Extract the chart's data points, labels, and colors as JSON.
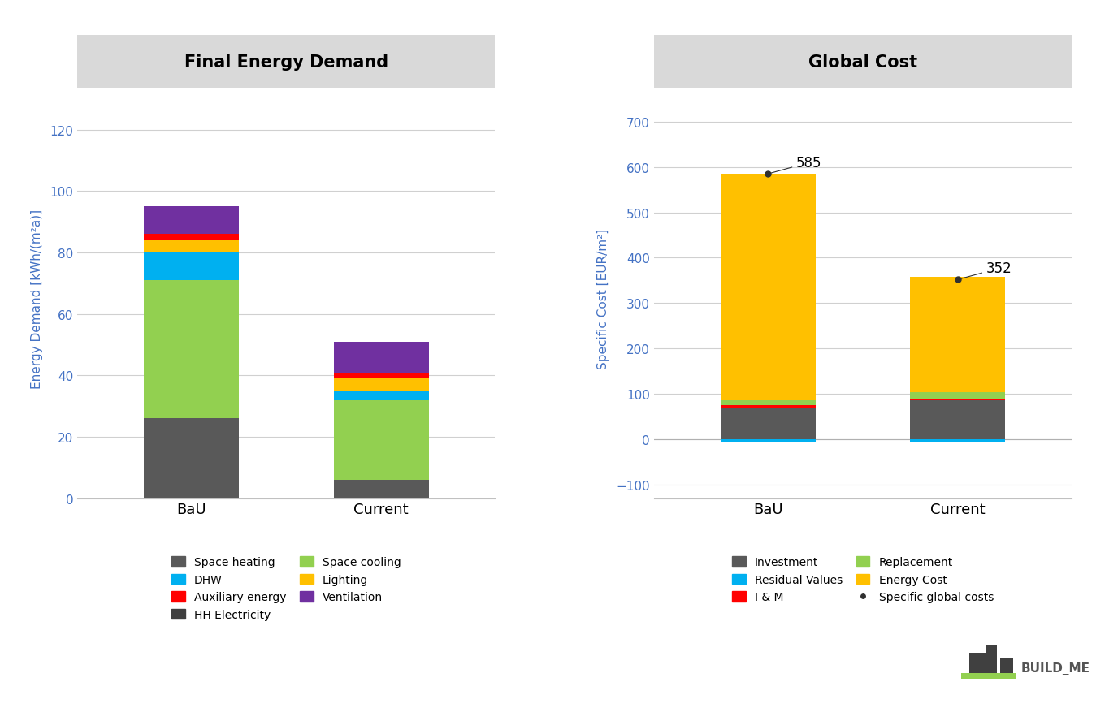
{
  "left_title": "Final Energy Demand",
  "right_title": "Global Cost",
  "left_ylabel": "Energy Demand [kWh/(m²a)]",
  "right_ylabel": "Specific Cost [EUR/m²]",
  "categories": [
    "BaU",
    "Current"
  ],
  "energy_data": {
    "Space heating": [
      26.0,
      6.0
    ],
    "Space cooling": [
      45.0,
      26.0
    ],
    "DHW": [
      9.0,
      3.0
    ],
    "Lighting": [
      4.0,
      4.0
    ],
    "Auxiliary energy": [
      2.0,
      2.0
    ],
    "Ventilation": [
      9.0,
      10.0
    ],
    "HH Electricity": [
      0.0,
      0.0
    ]
  },
  "energy_colors": {
    "Space heating": "#595959",
    "Space cooling": "#92d050",
    "DHW": "#00b0f0",
    "Lighting": "#ffc000",
    "Auxiliary energy": "#ff0000",
    "Ventilation": "#7030a0",
    "HH Electricity": "#3f3f3f"
  },
  "energy_ylim": [
    0,
    130
  ],
  "energy_yticks": [
    0,
    20,
    40,
    60,
    80,
    100,
    120
  ],
  "cost_data": {
    "Investment": [
      70.0,
      85.0
    ],
    "Residual Values": [
      -5.0,
      -5.0
    ],
    "I & M": [
      5.0,
      3.0
    ],
    "Replacement": [
      10.0,
      15.0
    ],
    "Energy Cost": [
      500.0,
      254.0
    ]
  },
  "cost_colors": {
    "Investment": "#595959",
    "Residual Values": "#00b0f0",
    "I & M": "#ff0000",
    "Replacement": "#92d050",
    "Energy Cost": "#ffc000"
  },
  "cost_totals": {
    "BaU": 585,
    "Current": 352
  },
  "cost_ylim": [
    -130,
    750
  ],
  "cost_yticks": [
    -100,
    0,
    100,
    200,
    300,
    400,
    500,
    600,
    700
  ],
  "axis_label_color": "#4472c4",
  "tick_color": "#4472c4",
  "grid_color": "#d0d0d0",
  "bar_width": 0.5,
  "logo_text": "BUILD_ME",
  "title_bg_color": "#d9d9d9"
}
